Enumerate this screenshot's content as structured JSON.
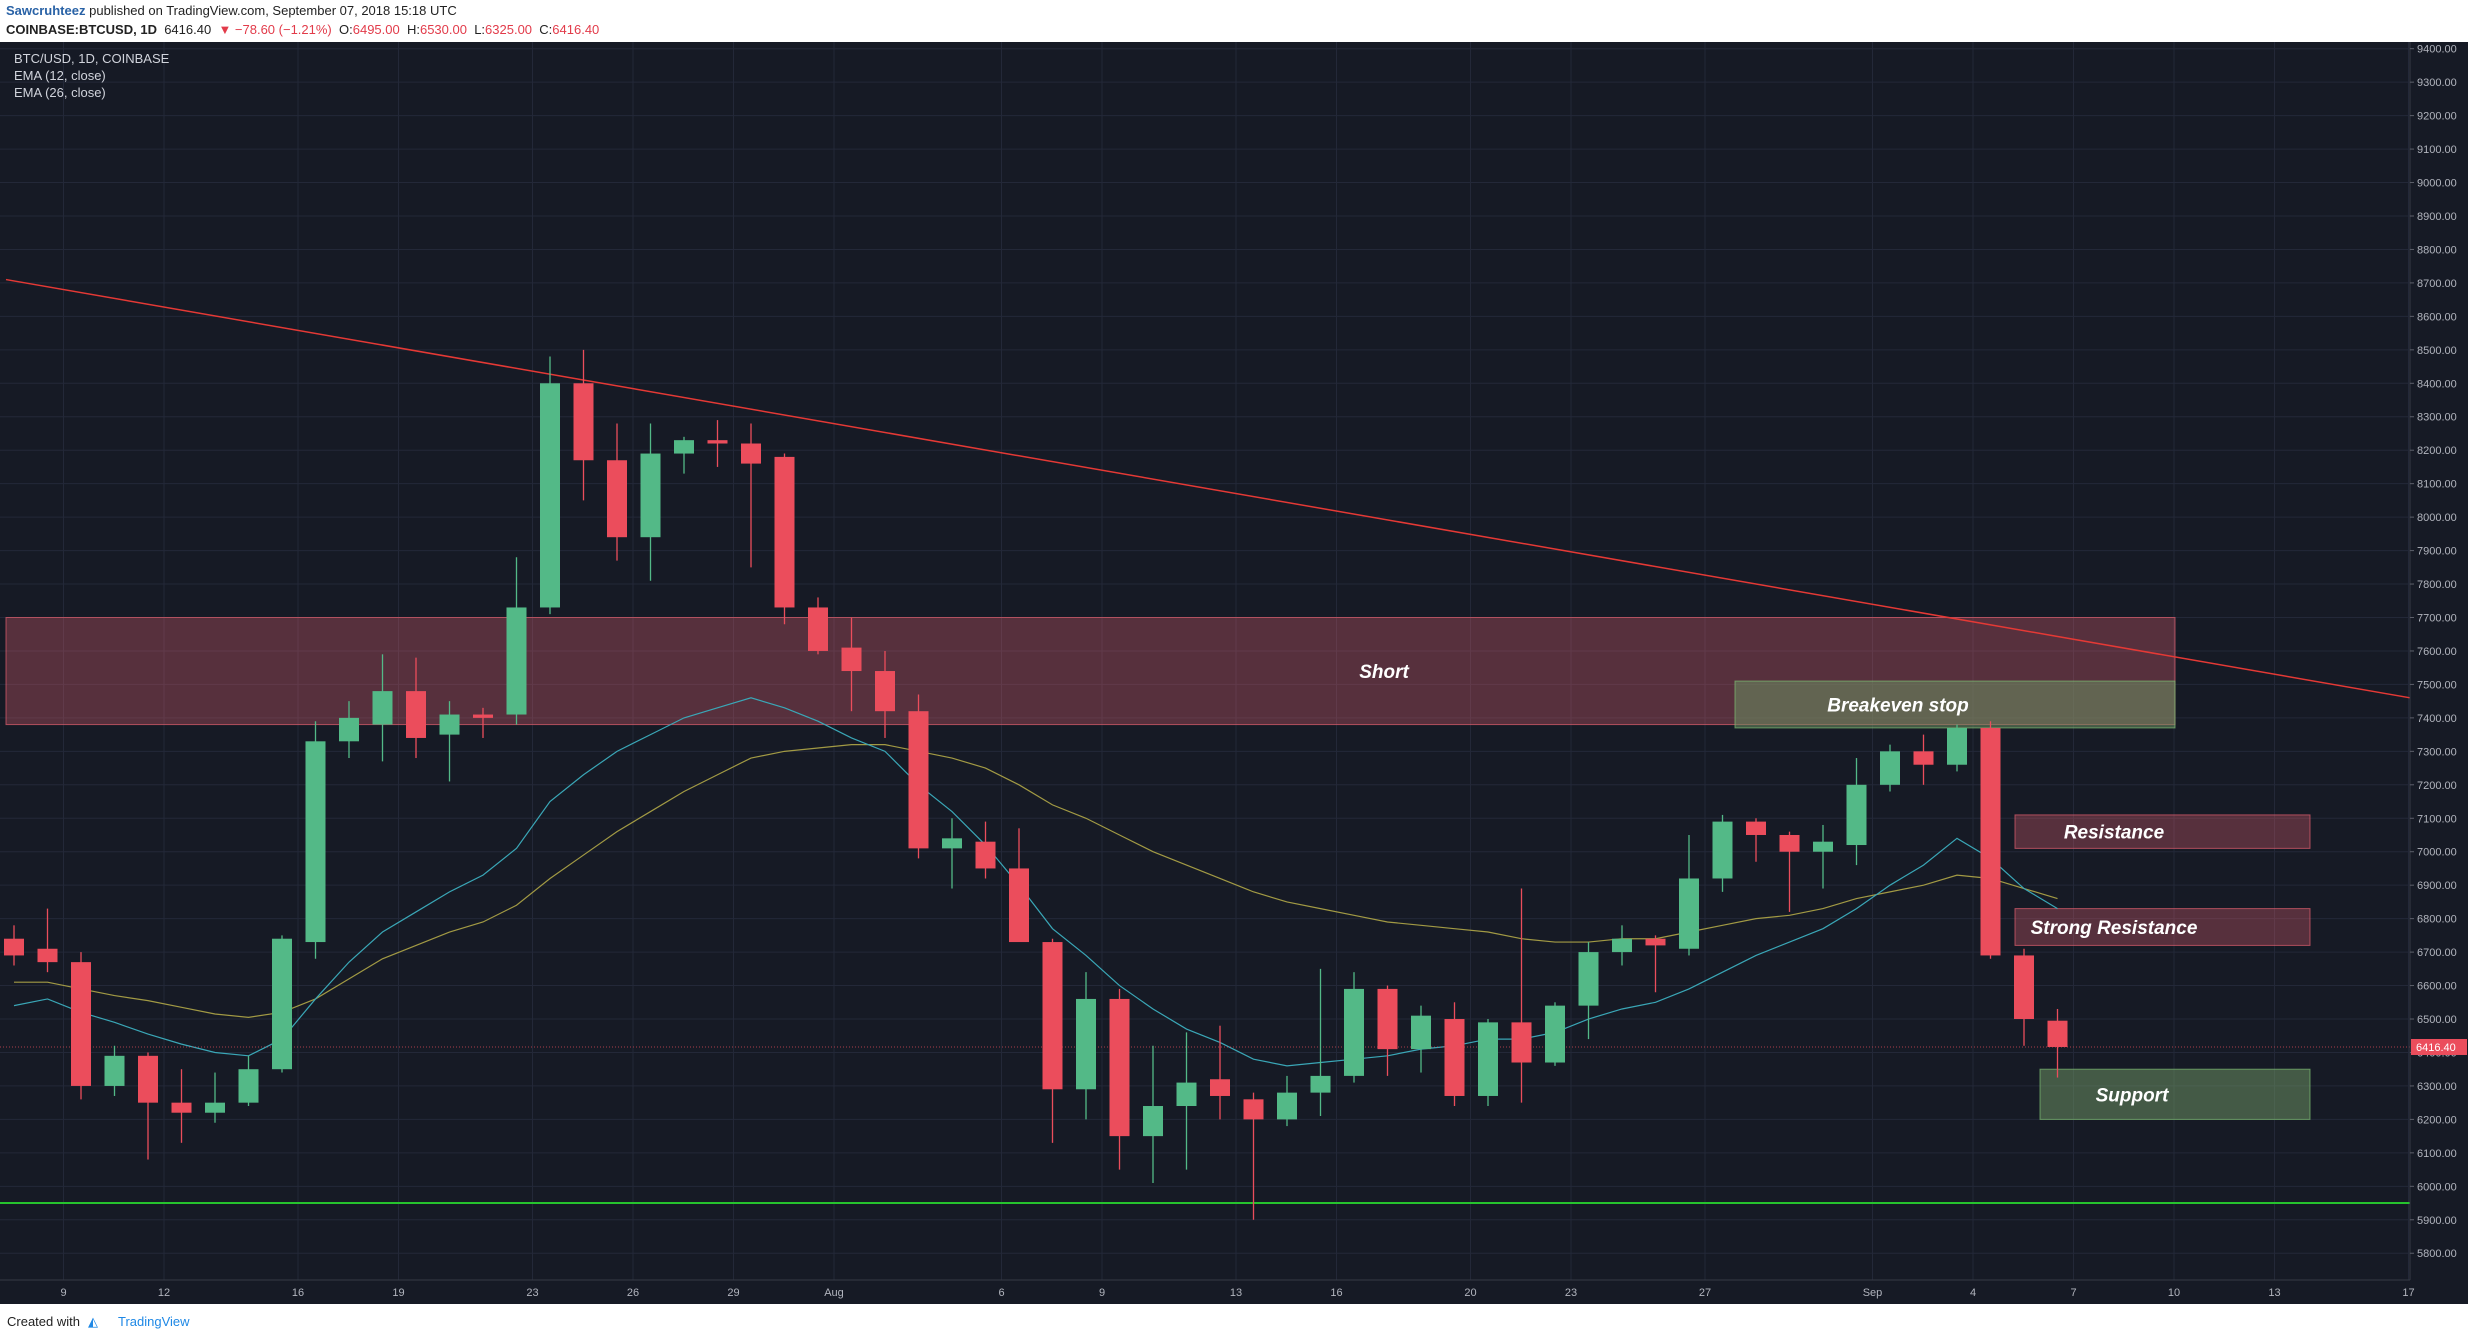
{
  "header": {
    "author": "Sawcruhteez",
    "published": "published on TradingView.com, September 07, 2018 15:18 UTC",
    "symbol": "COINBASE:BTCUSD, 1D",
    "price": "6416.40",
    "change": "▼ −78.60 (−1.21%)",
    "o_label": "O:",
    "o_value": "6495.00",
    "h_label": "H:",
    "h_value": "6530.00",
    "l_label": "L:",
    "l_value": "6325.00",
    "c_label": "C:",
    "c_value": "6416.40"
  },
  "legend": {
    "line1": "BTC/USD, 1D, COINBASE",
    "line2": "EMA (12, close)",
    "line3": "EMA (26, close)"
  },
  "footer": {
    "created_with": "Created with",
    "logo_icon": "tradingview-logo-icon",
    "brand": "TradingView"
  },
  "colors": {
    "background": "#161a25",
    "up": "#53b987",
    "down": "#eb4d5c",
    "ema12": "#3aa7b7",
    "ema26": "#a29a44",
    "trendline": "#e53935",
    "support_line": "#26c32e"
  },
  "chart_data": {
    "type": "candlestick",
    "symbol": "BTC/USD",
    "interval": "1D",
    "exchange": "COINBASE",
    "ylim": [
      5720,
      9420
    ],
    "y_ticks": [
      "9400.00",
      "9300.00",
      "9200.00",
      "9100.00",
      "9000.00",
      "8900.00",
      "8800.00",
      "8700.00",
      "8600.00",
      "8500.00",
      "8400.00",
      "8300.00",
      "8200.00",
      "8100.00",
      "8000.00",
      "7900.00",
      "7800.00",
      "7700.00",
      "7600.00",
      "7500.00",
      "7400.00",
      "7300.00",
      "7200.00",
      "7100.00",
      "7000.00",
      "6900.00",
      "6800.00",
      "6700.00",
      "6600.00",
      "6500.00",
      "6400.00",
      "6300.00",
      "6200.00",
      "6100.00",
      "6000.00",
      "5900.00",
      "5800.00"
    ],
    "x_ticks": [
      {
        "label": "9",
        "i": 1
      },
      {
        "label": "12",
        "i": 4
      },
      {
        "label": "16",
        "i": 8
      },
      {
        "label": "19",
        "i": 11
      },
      {
        "label": "23",
        "i": 15
      },
      {
        "label": "26",
        "i": 18
      },
      {
        "label": "29",
        "i": 21
      },
      {
        "label": "Aug",
        "i": 24
      },
      {
        "label": "6",
        "i": 29
      },
      {
        "label": "9",
        "i": 32
      },
      {
        "label": "13",
        "i": 36
      },
      {
        "label": "16",
        "i": 39
      },
      {
        "label": "20",
        "i": 43
      },
      {
        "label": "23",
        "i": 46
      },
      {
        "label": "27",
        "i": 50
      },
      {
        "label": "Sep",
        "i": 55
      },
      {
        "label": "4",
        "i": 58
      },
      {
        "label": "7",
        "i": 61
      },
      {
        "label": "10",
        "i": 64
      },
      {
        "label": "13",
        "i": 67
      },
      {
        "label": "17",
        "i": 71
      }
    ],
    "candles": [
      {
        "o": 6740,
        "h": 6780,
        "l": 6660,
        "c": 6690
      },
      {
        "o": 6710,
        "h": 6830,
        "l": 6640,
        "c": 6670
      },
      {
        "o": 6670,
        "h": 6700,
        "l": 6260,
        "c": 6300
      },
      {
        "o": 6300,
        "h": 6420,
        "l": 6270,
        "c": 6390
      },
      {
        "o": 6390,
        "h": 6400,
        "l": 6080,
        "c": 6250
      },
      {
        "o": 6250,
        "h": 6350,
        "l": 6130,
        "c": 6220
      },
      {
        "o": 6220,
        "h": 6340,
        "l": 6190,
        "c": 6250
      },
      {
        "o": 6250,
        "h": 6390,
        "l": 6240,
        "c": 6350
      },
      {
        "o": 6350,
        "h": 6750,
        "l": 6340,
        "c": 6740
      },
      {
        "o": 6730,
        "h": 7390,
        "l": 6680,
        "c": 7330
      },
      {
        "o": 7330,
        "h": 7450,
        "l": 7280,
        "c": 7400
      },
      {
        "o": 7380,
        "h": 7590,
        "l": 7270,
        "c": 7480
      },
      {
        "o": 7480,
        "h": 7580,
        "l": 7280,
        "c": 7340
      },
      {
        "o": 7350,
        "h": 7450,
        "l": 7210,
        "c": 7410
      },
      {
        "o": 7410,
        "h": 7430,
        "l": 7340,
        "c": 7400
      },
      {
        "o": 7410,
        "h": 7880,
        "l": 7380,
        "c": 7730
      },
      {
        "o": 7730,
        "h": 8480,
        "l": 7710,
        "c": 8400
      },
      {
        "o": 8400,
        "h": 8500,
        "l": 8050,
        "c": 8170
      },
      {
        "o": 8170,
        "h": 8280,
        "l": 7870,
        "c": 7940
      },
      {
        "o": 7940,
        "h": 8280,
        "l": 7810,
        "c": 8190
      },
      {
        "o": 8190,
        "h": 8240,
        "l": 8130,
        "c": 8230
      },
      {
        "o": 8230,
        "h": 8290,
        "l": 8150,
        "c": 8220
      },
      {
        "o": 8220,
        "h": 8280,
        "l": 7850,
        "c": 8160
      },
      {
        "o": 8180,
        "h": 8190,
        "l": 7680,
        "c": 7730
      },
      {
        "o": 7730,
        "h": 7760,
        "l": 7590,
        "c": 7600
      },
      {
        "o": 7610,
        "h": 7700,
        "l": 7420,
        "c": 7540
      },
      {
        "o": 7540,
        "h": 7600,
        "l": 7340,
        "c": 7420
      },
      {
        "o": 7420,
        "h": 7470,
        "l": 6980,
        "c": 7010
      },
      {
        "o": 7010,
        "h": 7100,
        "l": 6890,
        "c": 7040
      },
      {
        "o": 7030,
        "h": 7090,
        "l": 6920,
        "c": 6950
      },
      {
        "o": 6950,
        "h": 7070,
        "l": 6750,
        "c": 6730
      },
      {
        "o": 6730,
        "h": 6740,
        "l": 6130,
        "c": 6290
      },
      {
        "o": 6290,
        "h": 6640,
        "l": 6200,
        "c": 6560
      },
      {
        "o": 6560,
        "h": 6590,
        "l": 6050,
        "c": 6150
      },
      {
        "o": 6150,
        "h": 6420,
        "l": 6010,
        "c": 6240
      },
      {
        "o": 6240,
        "h": 6460,
        "l": 6050,
        "c": 6310
      },
      {
        "o": 6320,
        "h": 6480,
        "l": 6200,
        "c": 6270
      },
      {
        "o": 6260,
        "h": 6280,
        "l": 5900,
        "c": 6200
      },
      {
        "o": 6200,
        "h": 6330,
        "l": 6180,
        "c": 6280
      },
      {
        "o": 6280,
        "h": 6650,
        "l": 6210,
        "c": 6330
      },
      {
        "o": 6330,
        "h": 6640,
        "l": 6310,
        "c": 6590
      },
      {
        "o": 6590,
        "h": 6600,
        "l": 6330,
        "c": 6410
      },
      {
        "o": 6410,
        "h": 6540,
        "l": 6340,
        "c": 6510
      },
      {
        "o": 6500,
        "h": 6550,
        "l": 6240,
        "c": 6270
      },
      {
        "o": 6270,
        "h": 6500,
        "l": 6240,
        "c": 6490
      },
      {
        "o": 6490,
        "h": 6890,
        "l": 6250,
        "c": 6370
      },
      {
        "o": 6370,
        "h": 6550,
        "l": 6360,
        "c": 6540
      },
      {
        "o": 6540,
        "h": 6730,
        "l": 6440,
        "c": 6700
      },
      {
        "o": 6700,
        "h": 6780,
        "l": 6660,
        "c": 6740
      },
      {
        "o": 6740,
        "h": 6750,
        "l": 6580,
        "c": 6720
      },
      {
        "o": 6710,
        "h": 7050,
        "l": 6690,
        "c": 6920
      },
      {
        "o": 6920,
        "h": 7110,
        "l": 6880,
        "c": 7090
      },
      {
        "o": 7090,
        "h": 7100,
        "l": 6970,
        "c": 7050
      },
      {
        "o": 7050,
        "h": 7060,
        "l": 6820,
        "c": 7000
      },
      {
        "o": 7000,
        "h": 7080,
        "l": 6890,
        "c": 7030
      },
      {
        "o": 7020,
        "h": 7280,
        "l": 6960,
        "c": 7200
      },
      {
        "o": 7200,
        "h": 7320,
        "l": 7180,
        "c": 7300
      },
      {
        "o": 7300,
        "h": 7350,
        "l": 7200,
        "c": 7260
      },
      {
        "o": 7260,
        "h": 7380,
        "l": 7240,
        "c": 7370
      },
      {
        "o": 7370,
        "h": 7390,
        "l": 6680,
        "c": 6690
      },
      {
        "o": 6690,
        "h": 6710,
        "l": 6420,
        "c": 6500
      },
      {
        "o": 6495,
        "h": 6530,
        "l": 6325,
        "c": 6416.4
      }
    ],
    "ema12": [
      6540,
      6560,
      6520,
      6490,
      6455,
      6425,
      6400,
      6390,
      6440,
      6560,
      6670,
      6760,
      6820,
      6880,
      6930,
      7010,
      7150,
      7230,
      7300,
      7350,
      7400,
      7430,
      7460,
      7430,
      7390,
      7340,
      7300,
      7200,
      7120,
      7020,
      6900,
      6770,
      6690,
      6600,
      6530,
      6470,
      6430,
      6380,
      6360,
      6370,
      6380,
      6390,
      6410,
      6420,
      6440,
      6440,
      6460,
      6500,
      6530,
      6550,
      6590,
      6640,
      6690,
      6730,
      6770,
      6830,
      6900,
      6960,
      7040,
      6980,
      6890,
      6830
    ],
    "ema26": [
      6610,
      6610,
      6590,
      6570,
      6555,
      6535,
      6515,
      6505,
      6520,
      6560,
      6620,
      6680,
      6720,
      6760,
      6790,
      6840,
      6920,
      6990,
      7060,
      7120,
      7180,
      7230,
      7280,
      7300,
      7310,
      7320,
      7320,
      7300,
      7280,
      7250,
      7200,
      7140,
      7100,
      7050,
      7000,
      6960,
      6920,
      6880,
      6850,
      6830,
      6810,
      6790,
      6780,
      6770,
      6760,
      6740,
      6730,
      6730,
      6740,
      6740,
      6760,
      6780,
      6800,
      6810,
      6830,
      6860,
      6880,
      6900,
      6930,
      6920,
      6890,
      6860
    ],
    "last_price_label": "6416.40",
    "annotations": [
      {
        "label": "Short",
        "type": "zone",
        "y_low": 7380,
        "y_high": 7700
      },
      {
        "label": "Breakeven stop",
        "type": "zone",
        "y_low": 7370,
        "y_high": 7510
      },
      {
        "label": "Resistance",
        "type": "zone",
        "y_low": 7010,
        "y_high": 7110
      },
      {
        "label": "Strong Resistance",
        "type": "zone",
        "y_low": 6720,
        "y_high": 6830
      },
      {
        "label": "Support",
        "type": "zone",
        "y_low": 6200,
        "y_high": 6350
      }
    ],
    "trendline": {
      "y_start": 8710,
      "y_end": 7460
    },
    "support_level": 5950
  }
}
